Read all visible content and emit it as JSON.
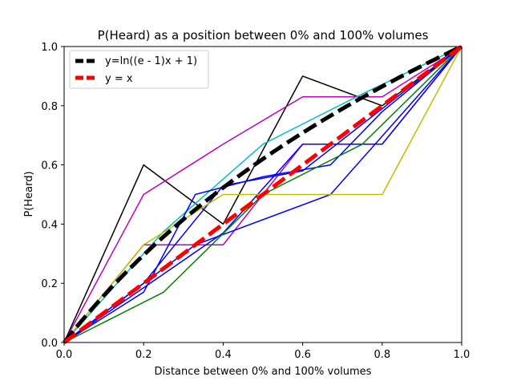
{
  "chart_data": {
    "type": "line",
    "title": "P(Heard) as a position between 0% and 100% volumes",
    "xlabel": "Distance between 0% and 100% volumes",
    "ylabel": "P(Heard)",
    "xlim": [
      0.0,
      1.0
    ],
    "ylim": [
      0.0,
      1.0
    ],
    "xticks": [
      "0.0",
      "0.2",
      "0.4",
      "0.6",
      "0.8",
      "1.0"
    ],
    "yticks": [
      "0.0",
      "0.2",
      "0.4",
      "0.6",
      "0.8",
      "1.0"
    ],
    "grid": false,
    "legend_position": "top-left",
    "series": [
      {
        "color": "#000000",
        "points": [
          [
            0,
            0
          ],
          [
            0.2,
            0.6
          ],
          [
            0.4,
            0.4
          ],
          [
            0.6,
            0.9
          ],
          [
            0.8,
            0.8
          ],
          [
            1,
            1
          ]
        ]
      },
      {
        "color": "#bf00bf",
        "points": [
          [
            0,
            0
          ],
          [
            0.2,
            0.5
          ],
          [
            0.4,
            0.67
          ],
          [
            0.6,
            0.83
          ],
          [
            0.8,
            0.83
          ],
          [
            1,
            1
          ]
        ]
      },
      {
        "color": "#bf00bf",
        "points": [
          [
            0,
            0
          ],
          [
            0.2,
            0.33
          ],
          [
            0.4,
            0.33
          ],
          [
            0.6,
            0.67
          ],
          [
            0.8,
            0.67
          ],
          [
            1,
            1
          ]
        ]
      },
      {
        "color": "#00bfbf",
        "points": [
          [
            0,
            0
          ],
          [
            0.25,
            0.375
          ],
          [
            0.5,
            0.67
          ],
          [
            0.75,
            0.84
          ],
          [
            1,
            1
          ]
        ]
      },
      {
        "color": "#0000ff",
        "points": [
          [
            0,
            0
          ],
          [
            0.2,
            0.17
          ],
          [
            0.33,
            0.5
          ],
          [
            0.5,
            0.56
          ],
          [
            0.67,
            0.6
          ],
          [
            0.8,
            0.78
          ],
          [
            1,
            1
          ]
        ]
      },
      {
        "color": "#0000ff",
        "points": [
          [
            0,
            0
          ],
          [
            0.2,
            0.2
          ],
          [
            0.4,
            0.53
          ],
          [
            0.6,
            0.58
          ],
          [
            1,
            1
          ]
        ]
      },
      {
        "color": "#0000ff",
        "points": [
          [
            0,
            0
          ],
          [
            0.33,
            0.33
          ],
          [
            0.67,
            0.5
          ],
          [
            1,
            1
          ]
        ]
      },
      {
        "color": "#0000ff",
        "points": [
          [
            0,
            0
          ],
          [
            0.4,
            0.37
          ],
          [
            0.6,
            0.67
          ],
          [
            0.8,
            0.67
          ],
          [
            1,
            1
          ]
        ]
      },
      {
        "color": "#008000",
        "points": [
          [
            0,
            0
          ],
          [
            0.25,
            0.17
          ],
          [
            0.5,
            0.5
          ],
          [
            0.75,
            0.67
          ],
          [
            1,
            1
          ]
        ]
      },
      {
        "color": "#bfbf00",
        "points": [
          [
            0,
            0
          ],
          [
            0.2,
            0.33
          ],
          [
            0.4,
            0.5
          ],
          [
            0.6,
            0.5
          ],
          [
            0.8,
            0.5
          ],
          [
            1,
            1
          ]
        ]
      },
      {
        "name": "y=ln((e - 1)x + 1)",
        "color": "#000000",
        "style": "dashed-thick",
        "function": "ln((e-1)x+1)"
      },
      {
        "name": "y = x",
        "color": "#ff0000",
        "style": "dashed-thick",
        "function": "x"
      }
    ]
  }
}
